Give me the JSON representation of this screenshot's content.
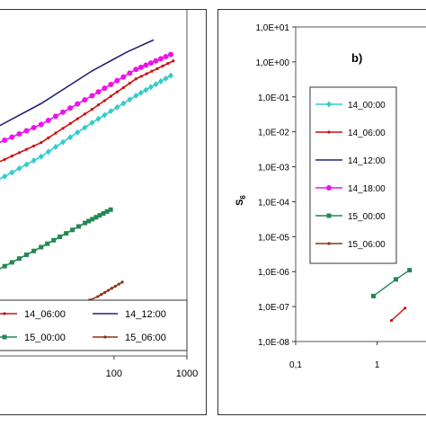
{
  "chart_data": [
    {
      "panel": "a",
      "type": "line",
      "xscale": "log",
      "yscale": "log",
      "xlim": [
        2,
        1000
      ],
      "x_ticks": [
        100,
        1000
      ],
      "x_tick_labels": [
        "100",
        "1000"
      ],
      "colors": {
        "14_00:00": "#33cccc",
        "14_06:00": "#cc1111",
        "14_12:00": "#22227a",
        "14_18:00": "#ee11ee",
        "15_00:00": "#228855",
        "15_06:00": "#8b3311"
      },
      "legend_visible": [
        "14_06:00",
        "14_12:00",
        "15_00:00",
        "15_06:00"
      ],
      "series": [
        {
          "name": "14_00:00",
          "x": [
            2,
            10,
            50,
            200,
            600
          ],
          "y": [
            0.62,
            0.88,
            1.35,
            1.9,
            2.45
          ]
        },
        {
          "name": "14_06:00",
          "x": [
            2,
            10,
            50,
            200,
            650
          ],
          "y": [
            0.78,
            1.05,
            1.6,
            2.35,
            2.95
          ]
        },
        {
          "name": "14_12:00",
          "x": [
            2,
            10,
            50,
            150,
            350
          ],
          "y": [
            1.22,
            1.72,
            2.6,
            3.3,
            3.85
          ]
        },
        {
          "name": "14_18:00",
          "x": [
            2,
            10,
            50,
            200,
            600
          ],
          "y": [
            1.0,
            1.32,
            1.9,
            2.65,
            3.2
          ]
        },
        {
          "name": "15_00:00",
          "x": [
            2,
            10,
            40,
            90
          ],
          "y": [
            0.2,
            0.28,
            0.38,
            0.45
          ]
        },
        {
          "name": "15_06:00",
          "x": [
            2,
            10,
            60,
            130
          ],
          "y": [
            0.085,
            0.11,
            0.15,
            0.18
          ]
        }
      ]
    },
    {
      "panel": "b",
      "type": "line",
      "title": "b)",
      "ylabel": "S6",
      "xscale": "log",
      "yscale": "log",
      "xlim": [
        0.1,
        5
      ],
      "ylim": [
        1e-08,
        10
      ],
      "x_ticks": [
        0.1,
        1
      ],
      "x_tick_labels": [
        "0,1",
        "1"
      ],
      "y_ticks": [
        10,
        1,
        0.1,
        0.01,
        0.001,
        0.0001,
        1e-05,
        1e-06,
        1e-07,
        1e-08
      ],
      "y_tick_labels": [
        "1,0E+01",
        "1,0E+00",
        "1,0E-01",
        "1,0E-02",
        "1,0E-03",
        "1,0E-04",
        "1,0E-05",
        "1,0E-06",
        "1,0E-07",
        "1,0E-08"
      ],
      "legend_visible": [
        "14_00:00",
        "14_06:00",
        "14_12:00",
        "14_18:00",
        "15_00:00",
        "15_06:00"
      ],
      "series": [
        {
          "name": "15_00:00",
          "x": [
            0.9,
            1.7,
            2.5
          ],
          "y": [
            2e-07,
            6e-07,
            1.1e-06
          ]
        },
        {
          "name": "14_06:00",
          "x": [
            1.5,
            2.2
          ],
          "y": [
            4e-08,
            9e-08
          ]
        }
      ]
    }
  ]
}
